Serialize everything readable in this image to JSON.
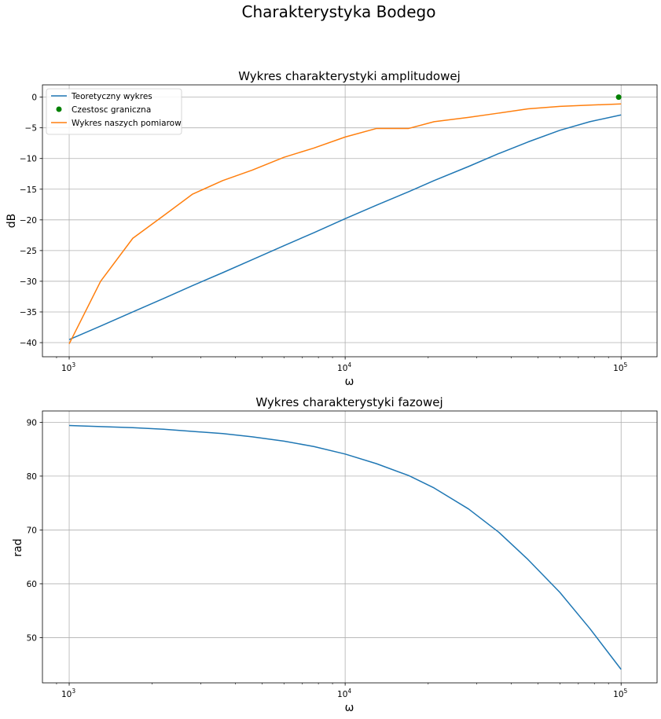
{
  "figure": {
    "title": "Charakterystyka Bodego"
  },
  "chart_data": [
    {
      "type": "line",
      "title": "Wykres charakterystyki amplitudowej",
      "xlabel": "ω",
      "ylabel": "dB",
      "xscale": "log",
      "xlim": [
        800,
        135000
      ],
      "ylim": [
        -42.3,
        2
      ],
      "yticks": [
        0,
        -5,
        -10,
        -15,
        -20,
        -25,
        -30,
        -35,
        -40
      ],
      "ytick_labels": [
        "0",
        "−5",
        "−10",
        "−15",
        "−20",
        "−25",
        "−30",
        "−35",
        "−40"
      ],
      "xticks": [
        1000,
        10000,
        100000
      ],
      "xtick_labels": [
        {
          "base": "10",
          "exp": "3"
        },
        {
          "base": "10",
          "exp": "4"
        },
        {
          "base": "10",
          "exp": "5"
        }
      ],
      "grid": true,
      "legend_position": "top-left",
      "series": [
        {
          "name": "Teoretyczny wykres",
          "kind": "line",
          "color": "#1f77b4",
          "x": [
            1000,
            1300,
            1700,
            2200,
            2800,
            3600,
            4600,
            6000,
            7700,
            10000,
            13000,
            17000,
            21000,
            28000,
            36000,
            46000,
            60000,
            77000,
            100000
          ],
          "y": [
            -39.5,
            -37.3,
            -35.0,
            -32.8,
            -30.7,
            -28.6,
            -26.5,
            -24.2,
            -22.1,
            -19.8,
            -17.6,
            -15.4,
            -13.6,
            -11.3,
            -9.2,
            -7.3,
            -5.4,
            -4.0,
            -2.9
          ]
        },
        {
          "name": "Czestosc graniczna",
          "kind": "scatter",
          "color": "#008000",
          "x": [
            98000
          ],
          "y": [
            0
          ]
        },
        {
          "name": "Wykres naszych pomiarow",
          "kind": "line",
          "color": "#ff7f0e",
          "x": [
            1000,
            1300,
            1700,
            2200,
            2800,
            3600,
            4600,
            6000,
            7700,
            10000,
            13000,
            17000,
            21000,
            28000,
            36000,
            46000,
            60000,
            77000,
            100000
          ],
          "y": [
            -40.2,
            -30.0,
            -23.0,
            -19.3,
            -15.8,
            -13.6,
            -11.9,
            -9.8,
            -8.3,
            -6.5,
            -5.1,
            -5.1,
            -4.0,
            -3.3,
            -2.6,
            -1.9,
            -1.5,
            -1.3,
            -1.1
          ]
        }
      ]
    },
    {
      "type": "line",
      "title": "Wykres charakterystyki fazowej",
      "xlabel": "ω",
      "ylabel": "rad",
      "xscale": "log",
      "xlim": [
        800,
        135000
      ],
      "ylim": [
        41.6,
        92.1
      ],
      "yticks": [
        90,
        80,
        70,
        60,
        50
      ],
      "ytick_labels": [
        "90",
        "80",
        "70",
        "60",
        "50"
      ],
      "xticks": [
        1000,
        10000,
        100000
      ],
      "xtick_labels": [
        {
          "base": "10",
          "exp": "3"
        },
        {
          "base": "10",
          "exp": "4"
        },
        {
          "base": "10",
          "exp": "5"
        }
      ],
      "grid": true,
      "series": [
        {
          "name": "",
          "kind": "line",
          "color": "#1f77b4",
          "x": [
            1000,
            1300,
            1700,
            2200,
            2800,
            3600,
            4600,
            6000,
            7700,
            10000,
            13000,
            17000,
            21000,
            28000,
            36000,
            46000,
            60000,
            77000,
            100000
          ],
          "y": [
            89.4,
            89.2,
            89.0,
            88.7,
            88.3,
            87.9,
            87.3,
            86.5,
            85.5,
            84.1,
            82.3,
            80.1,
            77.8,
            73.9,
            69.6,
            64.5,
            58.4,
            51.7,
            44.1
          ]
        }
      ]
    }
  ]
}
